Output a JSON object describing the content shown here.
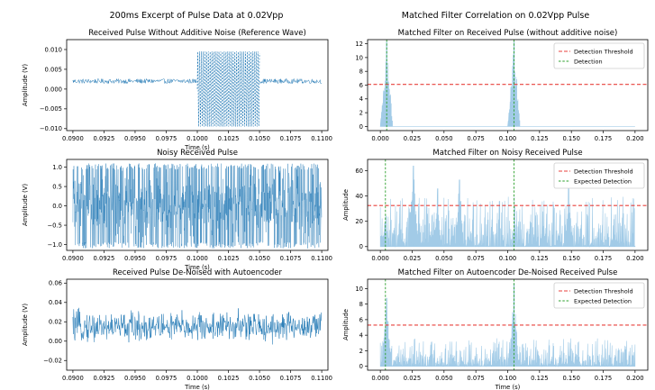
{
  "figure": {
    "left_suptitle": "200ms Excerpt of Pulse Data at 0.02Vpp",
    "right_suptitle": "Matched Filter Correlation on 0.02Vpp Pulse"
  },
  "colors": {
    "wave": "#1f77b4",
    "corr": "#9ec9e6",
    "threshold": "#e8413c",
    "detection": "#2ca02c",
    "axis": "#000000"
  },
  "chart_data": [
    {
      "id": "p1",
      "type": "line",
      "title": "Received Pulse Without Additive Noise (Reference Wave)",
      "xlabel": "Time (s)",
      "ylabel": "Amplitude (V)",
      "xlim": [
        0.0895,
        0.1105
      ],
      "ylim": [
        -0.0105,
        0.0125
      ],
      "xticks": [
        0.09,
        0.0925,
        0.095,
        0.0975,
        0.1,
        0.1025,
        0.105,
        0.1075,
        0.11
      ],
      "xticklabels": [
        "0.0900",
        "0.0925",
        "0.0950",
        "0.0975",
        "0.1000",
        "0.1025",
        "0.1050",
        "0.1075",
        "0.1100"
      ],
      "yticks": [
        -0.01,
        -0.005,
        0.0,
        0.005,
        0.01
      ],
      "yticklabels": [
        "−0.010",
        "−0.005",
        "0.000",
        "0.005",
        "0.010"
      ],
      "series": [
        {
          "style": "wave",
          "segments": [
            {
              "x0": 0.09,
              "x1": 0.1,
              "kind": "band",
              "center": 0.002,
              "halfwidth": 0.0006
            },
            {
              "x0": 0.1,
              "x1": 0.105,
              "kind": "sine",
              "center": 0.0,
              "amplitude": 0.0095,
              "cycles": 16
            },
            {
              "x0": 0.105,
              "x1": 0.11,
              "kind": "band",
              "center": 0.002,
              "halfwidth": 0.0006
            }
          ]
        }
      ]
    },
    {
      "id": "p2",
      "type": "line",
      "title": "Noisy Received Pulse",
      "xlabel": "Time (s)",
      "ylabel": "Amplitude (V)",
      "xlim": [
        0.0895,
        0.1105
      ],
      "ylim": [
        -1.15,
        1.2
      ],
      "xticks": [
        0.09,
        0.0925,
        0.095,
        0.0975,
        0.1,
        0.1025,
        0.105,
        0.1075,
        0.11
      ],
      "xticklabels": [
        "0.0900",
        "0.0925",
        "0.0950",
        "0.0975",
        "0.1000",
        "0.1025",
        "0.1050",
        "0.1075",
        "0.1100"
      ],
      "yticks": [
        -1.0,
        -0.5,
        0.0,
        0.5,
        1.0
      ],
      "yticklabels": [
        "−1.0",
        "−0.5",
        "0.0",
        "0.5",
        "1.0"
      ],
      "series": [
        {
          "style": "wave",
          "segments": [
            {
              "x0": 0.09,
              "x1": 0.11,
              "kind": "noise",
              "center": 0.0,
              "amplitude": 1.1
            }
          ]
        }
      ]
    },
    {
      "id": "p3",
      "type": "line",
      "title": "Received Pulse De-Noised with Autoencoder",
      "xlabel": "Time (s)",
      "ylabel": "Amplitude (V)",
      "xlim": [
        0.0895,
        0.1105
      ],
      "ylim": [
        -0.03,
        0.064
      ],
      "xticks": [
        0.09,
        0.0925,
        0.095,
        0.0975,
        0.1,
        0.1025,
        0.105,
        0.1075,
        0.11
      ],
      "xticklabels": [
        "0.0900",
        "0.0925",
        "0.0950",
        "0.0975",
        "0.1000",
        "0.1025",
        "0.1050",
        "0.1075",
        "0.1100"
      ],
      "yticks": [
        -0.02,
        0.0,
        0.02,
        0.04,
        0.06
      ],
      "yticklabels": [
        "−0.02",
        "0.00",
        "0.02",
        "0.04",
        "0.06"
      ],
      "series": [
        {
          "style": "wave",
          "segments": [
            {
              "x0": 0.09,
              "x1": 0.11,
              "kind": "noise",
              "center": 0.015,
              "amplitude": 0.022
            }
          ]
        }
      ]
    },
    {
      "id": "p4",
      "type": "area",
      "title": "Matched Filter on Received Pulse (without additive noise)",
      "xlabel": "",
      "ylabel": "",
      "xlim": [
        -0.01,
        0.21
      ],
      "ylim": [
        -0.6,
        12.6
      ],
      "xticks": [
        0.0,
        0.025,
        0.05,
        0.075,
        0.1,
        0.125,
        0.15,
        0.175,
        0.2
      ],
      "xticklabels": [
        "0.000",
        "0.025",
        "0.050",
        "0.075",
        "0.100",
        "0.125",
        "0.150",
        "0.175",
        "0.200"
      ],
      "yticks": [
        0,
        2,
        4,
        6,
        8,
        10,
        12
      ],
      "yticklabels": [
        "0",
        "2",
        "4",
        "6",
        "8",
        "10",
        "12"
      ],
      "peaks": [
        {
          "x": 0.005,
          "height": 12.3,
          "halfwidth": 0.005
        },
        {
          "x": 0.105,
          "height": 12.3,
          "halfwidth": 0.005
        }
      ],
      "baseline_noise": 0.0,
      "threshold": 6.1,
      "detections": [
        0.005,
        0.105
      ],
      "legend": [
        "Detection Threshold",
        "Detection"
      ]
    },
    {
      "id": "p5",
      "type": "area",
      "title": "Matched Filter on Noisy Received Pulse",
      "xlabel": "",
      "ylabel": "Amplitude",
      "xlim": [
        -0.01,
        0.21
      ],
      "ylim": [
        -3,
        69
      ],
      "xticks": [
        0.0,
        0.025,
        0.05,
        0.075,
        0.1,
        0.125,
        0.15,
        0.175,
        0.2
      ],
      "xticklabels": [
        "0.000",
        "0.025",
        "0.050",
        "0.075",
        "0.100",
        "0.125",
        "0.150",
        "0.175",
        "0.200"
      ],
      "yticks": [
        0,
        20,
        40,
        60
      ],
      "yticklabels": [
        "0",
        "20",
        "40",
        "60"
      ],
      "peaks": [
        {
          "x": 0.026,
          "height": 64,
          "halfwidth": 0.004
        },
        {
          "x": 0.062,
          "height": 53,
          "halfwidth": 0.003
        },
        {
          "x": 0.045,
          "height": 46,
          "halfwidth": 0.003
        },
        {
          "x": 0.148,
          "height": 52,
          "halfwidth": 0.003
        }
      ],
      "baseline_noise": 40.0,
      "threshold": 32.5,
      "detections": [
        0.004,
        0.105
      ],
      "legend": [
        "Detection Threshold",
        "Expected Detection"
      ]
    },
    {
      "id": "p6",
      "type": "area",
      "title": "Matched Filter on Autoencoder De-Noised Received Pulse",
      "xlabel": "Time (s)",
      "ylabel": "Amplitude",
      "xlim": [
        -0.01,
        0.21
      ],
      "ylim": [
        -0.5,
        11.2
      ],
      "xticks": [
        0.0,
        0.025,
        0.05,
        0.075,
        0.1,
        0.125,
        0.15,
        0.175,
        0.2
      ],
      "xticklabels": [
        "0.000",
        "0.025",
        "0.050",
        "0.075",
        "0.100",
        "0.125",
        "0.150",
        "0.175",
        "0.200"
      ],
      "yticks": [
        0,
        2,
        4,
        6,
        8,
        10
      ],
      "yticklabels": [
        "0",
        "2",
        "4",
        "6",
        "8",
        "10"
      ],
      "peaks": [
        {
          "x": 0.005,
          "height": 8.8,
          "halfwidth": 0.004
        },
        {
          "x": 0.105,
          "height": 10.7,
          "halfwidth": 0.004
        }
      ],
      "baseline_noise": 3.6,
      "threshold": 5.3,
      "detections": [
        0.004,
        0.105
      ],
      "legend": [
        "Detection Threshold",
        "Expected Detection"
      ]
    }
  ]
}
